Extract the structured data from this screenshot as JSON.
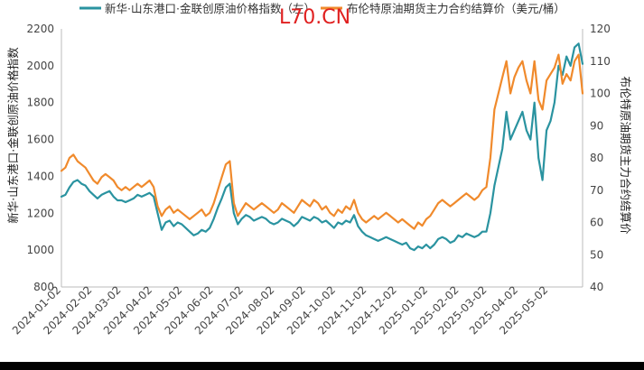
{
  "chart_data": {
    "type": "line",
    "title": "",
    "colors": {
      "series1": "#2a93a0",
      "series2": "#f08a2c",
      "watermark": "#e02020"
    },
    "watermark": "L70.CN",
    "legend": [
      {
        "label": "新华·山东港口·金联创原油价格指数（左）",
        "color": "#2a93a0"
      },
      {
        "label": "布伦特原油期货主力合约结算价（美元/桶）",
        "color": "#f08a2c"
      }
    ],
    "legend_placement": "top",
    "y_left": {
      "label": "新华·山东港口·金联创原油价格指数",
      "ticks": [
        "2200",
        "2000",
        "1800",
        "1600",
        "1400",
        "1200",
        "1000",
        "800"
      ],
      "min": 800,
      "max": 2200
    },
    "y_right": {
      "label": "布伦特原油期货主力合约结算价",
      "ticks": [
        "120",
        "110",
        "100",
        "90",
        "80",
        "70",
        "60",
        "50",
        "40"
      ],
      "min": 40,
      "max": 120
    },
    "x_ticks": [
      "2024-01-02",
      "2024-02-02",
      "2024-03-02",
      "2024-04-02",
      "2024-05-02",
      "2024-06-02",
      "2024-07-02",
      "2024-08-02",
      "2024-09-02",
      "2024-10-02",
      "2024-11-02",
      "2024-12-02",
      "2025-01-02",
      "2025-02-02",
      "2025-03-02",
      "2025-04-02",
      "2025-05-02"
    ],
    "grid": false,
    "series": [
      {
        "axis": "left",
        "color": "#2a93a0",
        "points": [
          [
            "2024-01-02",
            1290
          ],
          [
            "2024-01-06",
            1300
          ],
          [
            "2024-01-10",
            1340
          ],
          [
            "2024-01-14",
            1370
          ],
          [
            "2024-01-18",
            1380
          ],
          [
            "2024-01-22",
            1360
          ],
          [
            "2024-01-26",
            1350
          ],
          [
            "2024-01-30",
            1320
          ],
          [
            "2024-02-03",
            1300
          ],
          [
            "2024-02-07",
            1280
          ],
          [
            "2024-02-11",
            1300
          ],
          [
            "2024-02-15",
            1310
          ],
          [
            "2024-02-19",
            1320
          ],
          [
            "2024-02-23",
            1290
          ],
          [
            "2024-02-27",
            1270
          ],
          [
            "2024-03-02",
            1270
          ],
          [
            "2024-03-06",
            1260
          ],
          [
            "2024-03-10",
            1270
          ],
          [
            "2024-03-14",
            1280
          ],
          [
            "2024-03-18",
            1300
          ],
          [
            "2024-03-22",
            1290
          ],
          [
            "2024-03-26",
            1300
          ],
          [
            "2024-03-30",
            1310
          ],
          [
            "2024-04-03",
            1290
          ],
          [
            "2024-04-07",
            1200
          ],
          [
            "2024-04-11",
            1110
          ],
          [
            "2024-04-15",
            1150
          ],
          [
            "2024-04-19",
            1160
          ],
          [
            "2024-04-23",
            1130
          ],
          [
            "2024-04-27",
            1150
          ],
          [
            "2024-05-01",
            1140
          ],
          [
            "2024-05-05",
            1120
          ],
          [
            "2024-05-09",
            1100
          ],
          [
            "2024-05-13",
            1080
          ],
          [
            "2024-05-17",
            1090
          ],
          [
            "2024-05-21",
            1110
          ],
          [
            "2024-05-25",
            1100
          ],
          [
            "2024-05-29",
            1120
          ],
          [
            "2024-06-02",
            1170
          ],
          [
            "2024-06-06",
            1230
          ],
          [
            "2024-06-10",
            1280
          ],
          [
            "2024-06-14",
            1340
          ],
          [
            "2024-06-18",
            1360
          ],
          [
            "2024-06-22",
            1200
          ],
          [
            "2024-06-26",
            1140
          ],
          [
            "2024-06-30",
            1170
          ],
          [
            "2024-07-04",
            1190
          ],
          [
            "2024-07-08",
            1180
          ],
          [
            "2024-07-12",
            1160
          ],
          [
            "2024-07-16",
            1170
          ],
          [
            "2024-07-20",
            1180
          ],
          [
            "2024-07-24",
            1170
          ],
          [
            "2024-07-28",
            1150
          ],
          [
            "2024-08-01",
            1140
          ],
          [
            "2024-08-05",
            1150
          ],
          [
            "2024-08-09",
            1170
          ],
          [
            "2024-08-13",
            1160
          ],
          [
            "2024-08-17",
            1150
          ],
          [
            "2024-08-21",
            1130
          ],
          [
            "2024-08-25",
            1150
          ],
          [
            "2024-08-29",
            1180
          ],
          [
            "2024-09-02",
            1170
          ],
          [
            "2024-09-06",
            1160
          ],
          [
            "2024-09-10",
            1180
          ],
          [
            "2024-09-14",
            1170
          ],
          [
            "2024-09-18",
            1150
          ],
          [
            "2024-09-22",
            1160
          ],
          [
            "2024-09-26",
            1140
          ],
          [
            "2024-09-30",
            1120
          ],
          [
            "2024-10-04",
            1150
          ],
          [
            "2024-10-08",
            1140
          ],
          [
            "2024-10-12",
            1160
          ],
          [
            "2024-10-16",
            1150
          ],
          [
            "2024-10-20",
            1190
          ],
          [
            "2024-10-24",
            1130
          ],
          [
            "2024-10-28",
            1100
          ],
          [
            "2024-11-01",
            1080
          ],
          [
            "2024-11-05",
            1070
          ],
          [
            "2024-11-09",
            1060
          ],
          [
            "2024-11-13",
            1050
          ],
          [
            "2024-11-17",
            1060
          ],
          [
            "2024-11-21",
            1070
          ],
          [
            "2024-11-25",
            1060
          ],
          [
            "2024-11-29",
            1050
          ],
          [
            "2024-12-03",
            1040
          ],
          [
            "2024-12-07",
            1030
          ],
          [
            "2024-12-11",
            1040
          ],
          [
            "2024-12-15",
            1010
          ],
          [
            "2024-12-19",
            1000
          ],
          [
            "2024-12-23",
            1020
          ],
          [
            "2024-12-27",
            1010
          ],
          [
            "2024-12-31",
            1030
          ],
          [
            "2025-01-04",
            1010
          ],
          [
            "2025-01-08",
            1030
          ],
          [
            "2025-01-12",
            1060
          ],
          [
            "2025-01-16",
            1070
          ],
          [
            "2025-01-20",
            1060
          ],
          [
            "2025-01-24",
            1040
          ],
          [
            "2025-01-28",
            1050
          ],
          [
            "2025-02-01",
            1080
          ],
          [
            "2025-02-05",
            1070
          ],
          [
            "2025-02-09",
            1090
          ],
          [
            "2025-02-13",
            1080
          ],
          [
            "2025-02-17",
            1070
          ],
          [
            "2025-02-21",
            1080
          ],
          [
            "2025-02-25",
            1100
          ],
          [
            "2025-03-01",
            1100
          ],
          [
            "2025-03-05",
            1200
          ],
          [
            "2025-03-09",
            1350
          ],
          [
            "2025-03-13",
            1450
          ],
          [
            "2025-03-17",
            1550
          ],
          [
            "2025-03-21",
            1750
          ],
          [
            "2025-03-25",
            1600
          ],
          [
            "2025-03-29",
            1650
          ],
          [
            "2025-04-02",
            1700
          ],
          [
            "2025-04-06",
            1750
          ],
          [
            "2025-04-10",
            1650
          ],
          [
            "2025-04-14",
            1600
          ],
          [
            "2025-04-18",
            1800
          ],
          [
            "2025-04-22",
            1500
          ],
          [
            "2025-04-26",
            1380
          ],
          [
            "2025-04-30",
            1650
          ],
          [
            "2025-05-04",
            1700
          ],
          [
            "2025-05-08",
            1800
          ],
          [
            "2025-05-12",
            2000
          ],
          [
            "2025-05-16",
            1950
          ],
          [
            "2025-05-20",
            2050
          ],
          [
            "2025-05-24",
            2000
          ],
          [
            "2025-05-28",
            2100
          ],
          [
            "2025-06-01",
            2120
          ],
          [
            "2025-06-05",
            2010
          ]
        ]
      },
      {
        "axis": "right",
        "color": "#f08a2c",
        "points": [
          [
            "2024-01-02",
            76
          ],
          [
            "2024-01-06",
            77
          ],
          [
            "2024-01-10",
            80
          ],
          [
            "2024-01-14",
            81
          ],
          [
            "2024-01-18",
            79
          ],
          [
            "2024-01-22",
            78
          ],
          [
            "2024-01-26",
            77
          ],
          [
            "2024-01-30",
            75
          ],
          [
            "2024-02-03",
            73
          ],
          [
            "2024-02-07",
            72
          ],
          [
            "2024-02-11",
            74
          ],
          [
            "2024-02-15",
            75
          ],
          [
            "2024-02-19",
            74
          ],
          [
            "2024-02-23",
            73
          ],
          [
            "2024-02-27",
            71
          ],
          [
            "2024-03-02",
            70
          ],
          [
            "2024-03-06",
            71
          ],
          [
            "2024-03-10",
            70
          ],
          [
            "2024-03-14",
            71
          ],
          [
            "2024-03-18",
            72
          ],
          [
            "2024-03-22",
            71
          ],
          [
            "2024-03-26",
            72
          ],
          [
            "2024-03-30",
            73
          ],
          [
            "2024-04-03",
            71
          ],
          [
            "2024-04-07",
            65
          ],
          [
            "2024-04-11",
            62
          ],
          [
            "2024-04-15",
            64
          ],
          [
            "2024-04-19",
            65
          ],
          [
            "2024-04-23",
            63
          ],
          [
            "2024-04-27",
            64
          ],
          [
            "2024-05-01",
            63
          ],
          [
            "2024-05-05",
            62
          ],
          [
            "2024-05-09",
            61
          ],
          [
            "2024-05-13",
            62
          ],
          [
            "2024-05-17",
            63
          ],
          [
            "2024-05-21",
            64
          ],
          [
            "2024-05-25",
            62
          ],
          [
            "2024-05-29",
            63
          ],
          [
            "2024-06-02",
            66
          ],
          [
            "2024-06-06",
            70
          ],
          [
            "2024-06-10",
            74
          ],
          [
            "2024-06-14",
            78
          ],
          [
            "2024-06-18",
            79
          ],
          [
            "2024-06-22",
            66
          ],
          [
            "2024-06-26",
            62
          ],
          [
            "2024-06-30",
            64
          ],
          [
            "2024-07-04",
            66
          ],
          [
            "2024-07-08",
            65
          ],
          [
            "2024-07-12",
            64
          ],
          [
            "2024-07-16",
            65
          ],
          [
            "2024-07-20",
            66
          ],
          [
            "2024-07-24",
            65
          ],
          [
            "2024-07-28",
            64
          ],
          [
            "2024-08-01",
            63
          ],
          [
            "2024-08-05",
            64
          ],
          [
            "2024-08-09",
            66
          ],
          [
            "2024-08-13",
            65
          ],
          [
            "2024-08-17",
            64
          ],
          [
            "2024-08-21",
            63
          ],
          [
            "2024-08-25",
            65
          ],
          [
            "2024-08-29",
            67
          ],
          [
            "2024-09-02",
            66
          ],
          [
            "2024-09-06",
            65
          ],
          [
            "2024-09-10",
            67
          ],
          [
            "2024-09-14",
            66
          ],
          [
            "2024-09-18",
            64
          ],
          [
            "2024-09-22",
            65
          ],
          [
            "2024-09-26",
            63
          ],
          [
            "2024-09-30",
            62
          ],
          [
            "2024-10-04",
            64
          ],
          [
            "2024-10-08",
            63
          ],
          [
            "2024-10-12",
            65
          ],
          [
            "2024-10-16",
            64
          ],
          [
            "2024-10-20",
            67
          ],
          [
            "2024-10-24",
            63
          ],
          [
            "2024-10-28",
            61
          ],
          [
            "2024-11-01",
            60
          ],
          [
            "2024-11-05",
            61
          ],
          [
            "2024-11-09",
            62
          ],
          [
            "2024-11-13",
            61
          ],
          [
            "2024-11-17",
            62
          ],
          [
            "2024-11-21",
            63
          ],
          [
            "2024-11-25",
            62
          ],
          [
            "2024-11-29",
            61
          ],
          [
            "2024-12-03",
            60
          ],
          [
            "2024-12-07",
            61
          ],
          [
            "2024-12-11",
            60
          ],
          [
            "2024-12-15",
            59
          ],
          [
            "2024-12-19",
            58
          ],
          [
            "2024-12-23",
            60
          ],
          [
            "2024-12-27",
            59
          ],
          [
            "2024-12-31",
            61
          ],
          [
            "2025-01-04",
            62
          ],
          [
            "2025-01-08",
            64
          ],
          [
            "2025-01-12",
            66
          ],
          [
            "2025-01-16",
            67
          ],
          [
            "2025-01-20",
            66
          ],
          [
            "2025-01-24",
            65
          ],
          [
            "2025-01-28",
            66
          ],
          [
            "2025-02-01",
            67
          ],
          [
            "2025-02-05",
            68
          ],
          [
            "2025-02-09",
            69
          ],
          [
            "2025-02-13",
            68
          ],
          [
            "2025-02-17",
            67
          ],
          [
            "2025-02-21",
            68
          ],
          [
            "2025-02-25",
            70
          ],
          [
            "2025-03-01",
            71
          ],
          [
            "2025-03-05",
            80
          ],
          [
            "2025-03-09",
            95
          ],
          [
            "2025-03-13",
            100
          ],
          [
            "2025-03-17",
            105
          ],
          [
            "2025-03-21",
            110
          ],
          [
            "2025-03-25",
            100
          ],
          [
            "2025-03-29",
            105
          ],
          [
            "2025-04-02",
            108
          ],
          [
            "2025-04-06",
            110
          ],
          [
            "2025-04-10",
            104
          ],
          [
            "2025-04-14",
            100
          ],
          [
            "2025-04-18",
            110
          ],
          [
            "2025-04-22",
            98
          ],
          [
            "2025-04-26",
            95
          ],
          [
            "2025-04-30",
            104
          ],
          [
            "2025-05-04",
            106
          ],
          [
            "2025-05-08",
            108
          ],
          [
            "2025-05-12",
            112
          ],
          [
            "2025-05-16",
            103
          ],
          [
            "2025-05-20",
            106
          ],
          [
            "2025-05-24",
            104
          ],
          [
            "2025-05-28",
            110
          ],
          [
            "2025-06-01",
            112
          ],
          [
            "2025-06-05",
            100
          ]
        ]
      }
    ]
  }
}
